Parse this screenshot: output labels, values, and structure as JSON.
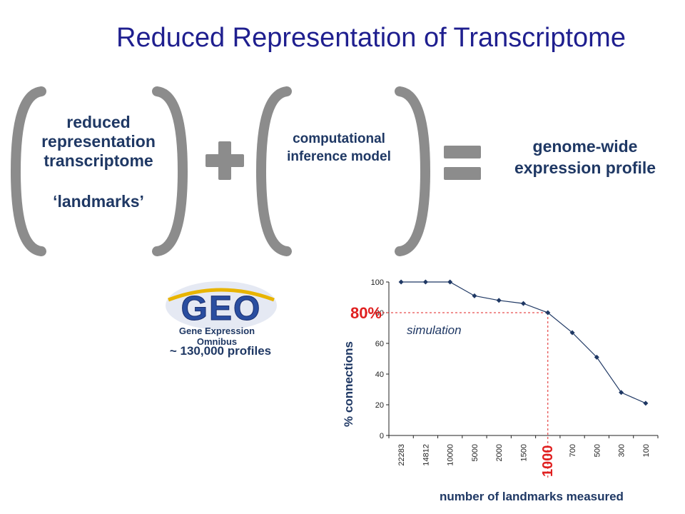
{
  "slide": {
    "title": "Reduced Representation of Transcriptome",
    "box1": {
      "lines": [
        "reduced",
        "representation",
        "transcriptome"
      ],
      "landmarks": "‘landmarks’"
    },
    "box2": {
      "lines": [
        "computational",
        "inference model"
      ]
    },
    "box3": {
      "lines": [
        "genome-wide",
        "expression profile"
      ]
    },
    "operator_plus": "plus-icon",
    "operator_equals": "equals-icon",
    "geo": {
      "logo_text": "GEO",
      "subtitle": "Gene Expression Omnibus",
      "profiles": "~ 130,000 profiles"
    }
  },
  "colors": {
    "title": "#1f1f8f",
    "text": "#1f3864",
    "bracket": "#8c8c8c",
    "series": "#1f3864",
    "annotation": "#e02020",
    "geo_blue": "#2a4ea0",
    "geo_gold": "#e8b400"
  },
  "chart_data": {
    "type": "line",
    "categories": [
      "22283",
      "14812",
      "10000",
      "5000",
      "2000",
      "1500",
      "1000",
      "700",
      "500",
      "300",
      "100"
    ],
    "values": [
      100,
      100,
      100,
      91,
      88,
      86,
      80,
      67,
      51,
      28,
      21
    ],
    "missing_marker_category": "1000",
    "ylabel": "% connections",
    "xlabel": "number of landmarks measured",
    "ylim": [
      0,
      100
    ],
    "yticks": [
      0,
      20,
      40,
      60,
      80,
      100
    ],
    "grid": false,
    "annotations": {
      "y_marker_label": "80%",
      "y_marker_value": 80,
      "x_marker_label": "1000",
      "series_label": "simulation"
    }
  }
}
